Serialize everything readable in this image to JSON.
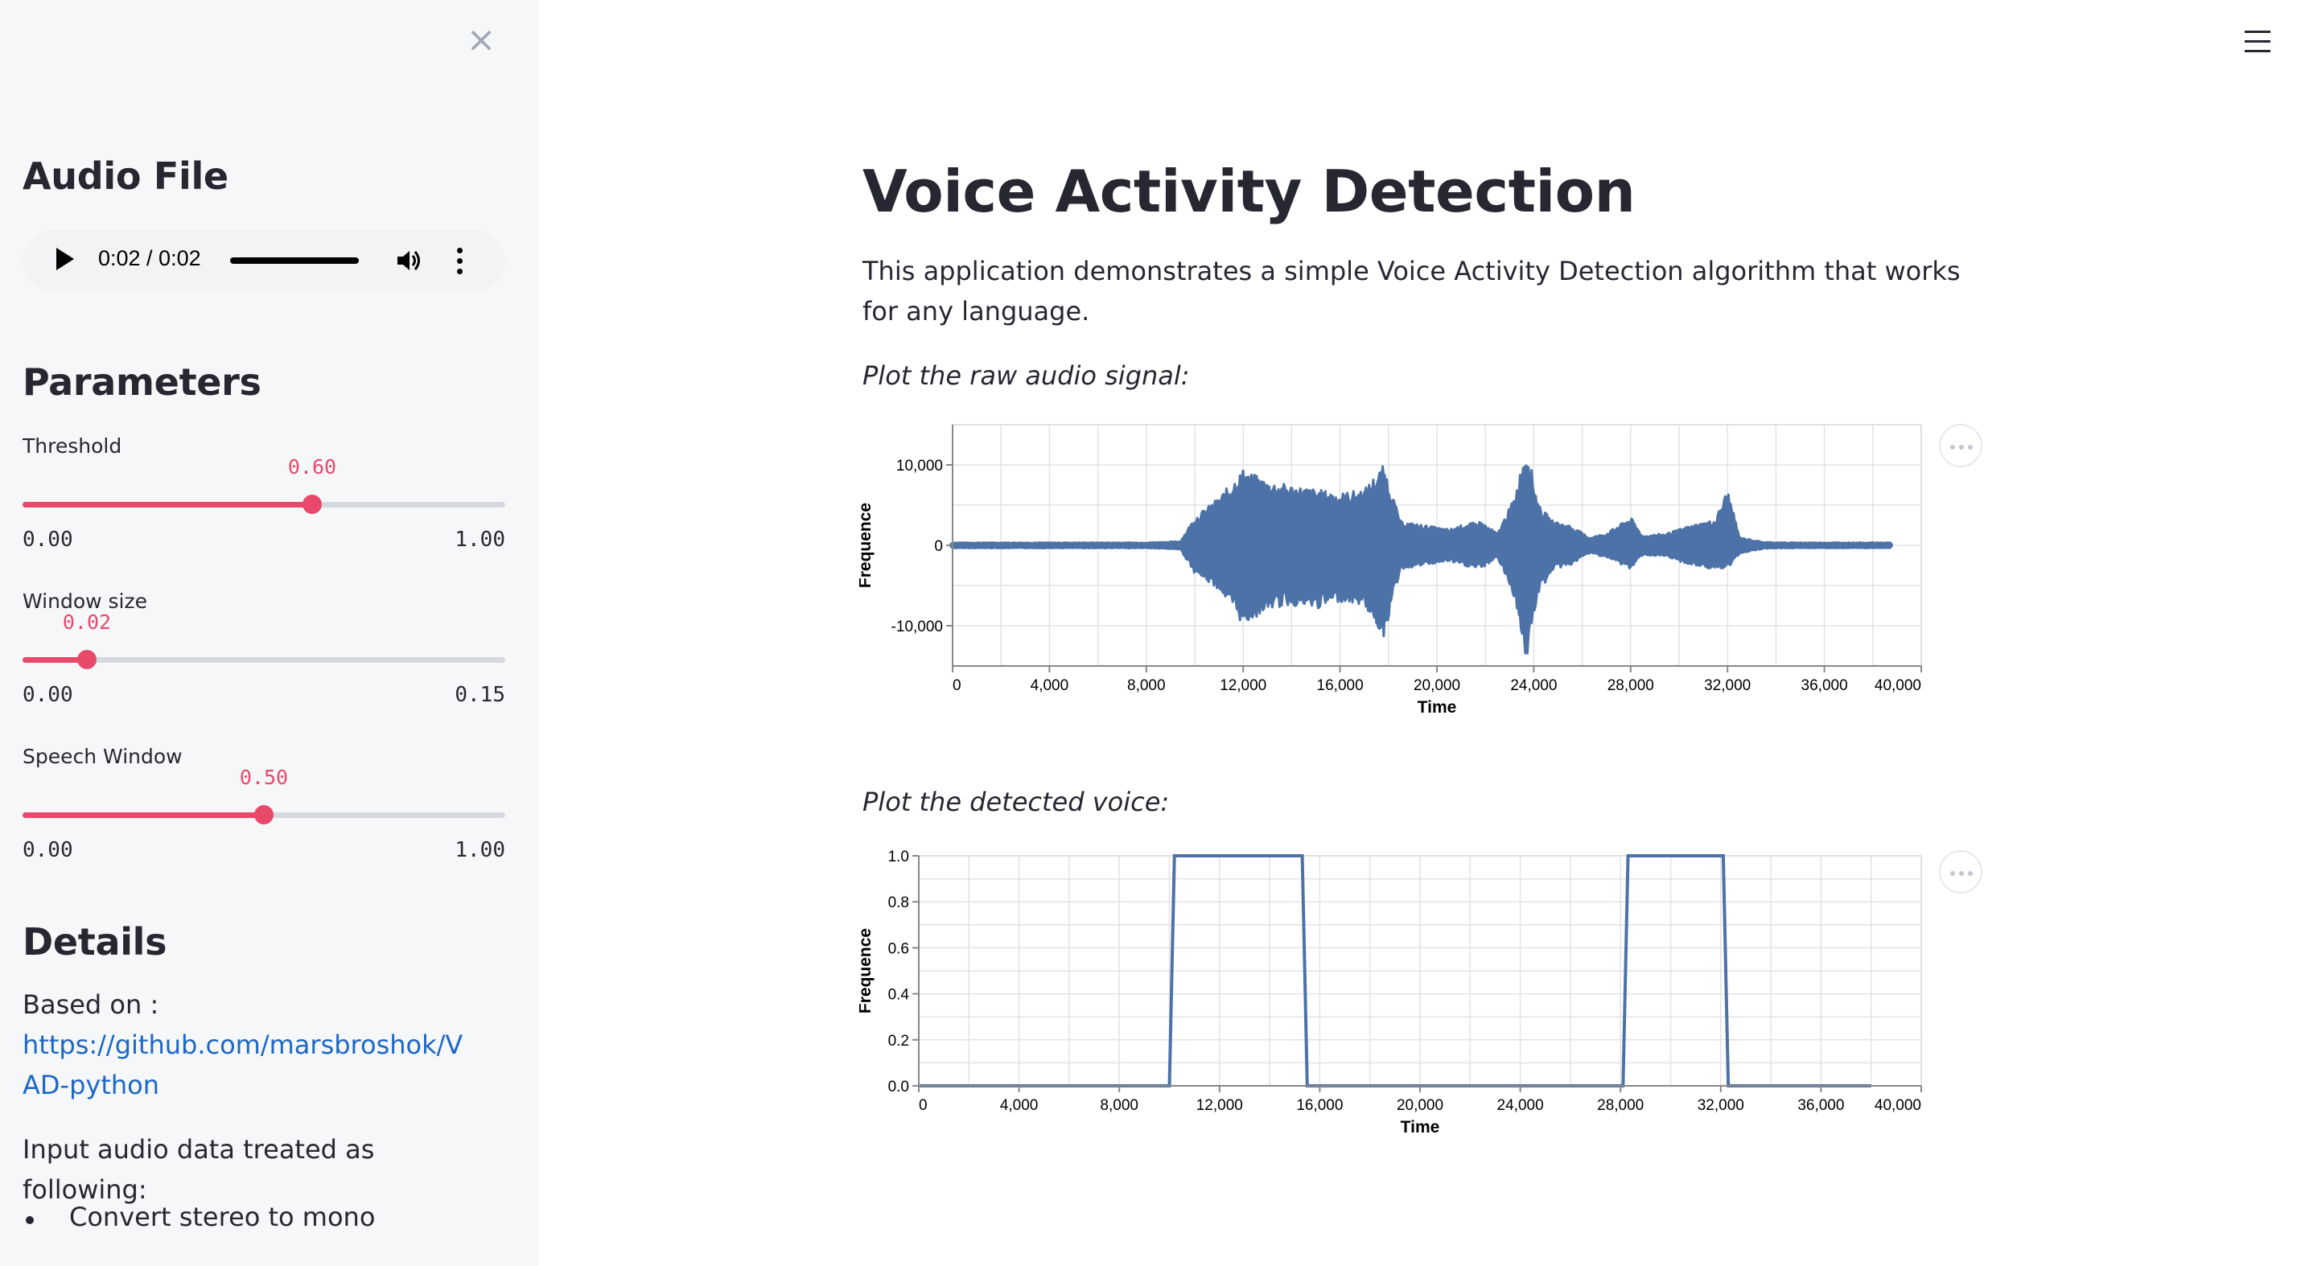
{
  "sidebar": {
    "close_icon": "close-icon",
    "audio_heading": "Audio File",
    "audio_player": {
      "time": "0:02 / 0:02",
      "progress": 1.0
    },
    "parameters_heading": "Parameters",
    "sliders": [
      {
        "label": "Threshold",
        "value": "0.60",
        "min": "0.00",
        "max": "1.00",
        "fraction": 0.6
      },
      {
        "label": "Window size",
        "value": "0.02",
        "min": "0.00",
        "max": "0.15",
        "fraction": 0.1333
      },
      {
        "label": "Speech Window",
        "value": "0.50",
        "min": "0.00",
        "max": "1.00",
        "fraction": 0.5
      }
    ],
    "details_heading": "Details",
    "based_on": "Based on :",
    "link": "https://github.com/marsbroshok/VAD-python",
    "input_text": "Input audio data treated as following:",
    "bullets": [
      "Convert stereo to mono"
    ]
  },
  "main": {
    "menu_icon": "hamburger-menu-icon",
    "title": "Voice Activity Detection",
    "description": "This application demonstrates a simple Voice Activity Detection algorithm that works for any language.",
    "caption1": "Plot the raw audio signal:",
    "caption2": "Plot the detected voice:"
  },
  "colors": {
    "accent": "#e8496b",
    "series": "#4c72a8",
    "link": "#1c67c7",
    "sidebar_bg": "#f6f7f9"
  },
  "chart_data": [
    {
      "type": "area",
      "xlabel": "Time",
      "ylabel": "Frequence",
      "xlim": [
        0,
        40000
      ],
      "ylim": [
        -15000,
        15000
      ],
      "x_ticks": [
        "0",
        "4,000",
        "8,000",
        "12,000",
        "16,000",
        "20,000",
        "24,000",
        "28,000",
        "32,000",
        "36,000",
        "40,000"
      ],
      "y_ticks": [
        "10,000",
        "0",
        "-10,000"
      ],
      "y_tick_values": [
        10000,
        0,
        -10000
      ],
      "grid": true,
      "series": [
        {
          "x": [
            0,
            2000,
            4000,
            6000,
            8000,
            9400,
            10000,
            11000,
            12000,
            13000,
            14000,
            15000,
            16000,
            17000,
            17800,
            18500,
            19500,
            20500,
            21000,
            21800,
            22500,
            23200,
            23700,
            24200,
            24800,
            25500,
            26300,
            27000,
            28000,
            28500,
            29500,
            30500,
            31500,
            32000,
            32500,
            33500,
            34500,
            36000,
            38000,
            38700
          ],
          "y_max": [
            350,
            350,
            350,
            350,
            350,
            500,
            3500,
            6000,
            9500,
            8000,
            7500,
            7000,
            6500,
            7000,
            10000,
            3000,
            2500,
            2000,
            2500,
            3000,
            1500,
            6000,
            12500,
            5000,
            3000,
            2500,
            1000,
            1500,
            3500,
            1200,
            1500,
            2500,
            3200,
            7000,
            1000,
            400,
            350,
            350,
            350,
            350
          ],
          "y_min": [
            -350,
            -350,
            -350,
            -350,
            -350,
            -500,
            -3500,
            -5500,
            -10000,
            -8000,
            -7500,
            -8000,
            -7000,
            -7500,
            -11500,
            -3000,
            -2500,
            -2000,
            -2500,
            -3000,
            -1500,
            -6500,
            -14500,
            -6000,
            -3000,
            -2500,
            -1000,
            -1500,
            -3000,
            -1200,
            -1500,
            -2500,
            -3000,
            -3000,
            -1000,
            -400,
            -350,
            -350,
            -350,
            -350
          ]
        }
      ]
    },
    {
      "type": "line",
      "xlabel": "Time",
      "ylabel": "Frequence",
      "xlim": [
        0,
        40000
      ],
      "ylim": [
        0,
        1.0
      ],
      "x_ticks": [
        "0",
        "4,000",
        "8,000",
        "12,000",
        "16,000",
        "20,000",
        "24,000",
        "28,000",
        "32,000",
        "36,000",
        "40,000"
      ],
      "y_ticks": [
        "1.0",
        "0.8",
        "0.6",
        "0.4",
        "0.2",
        "0.0"
      ],
      "y_tick_values": [
        1.0,
        0.8,
        0.6,
        0.4,
        0.2,
        0.0
      ],
      "grid": true,
      "series": [
        {
          "x": [
            0,
            10000,
            10200,
            15300,
            15500,
            28100,
            28300,
            32100,
            32300,
            38000
          ],
          "y": [
            0,
            0,
            1,
            1,
            0,
            0,
            1,
            1,
            0,
            0
          ]
        }
      ]
    }
  ]
}
